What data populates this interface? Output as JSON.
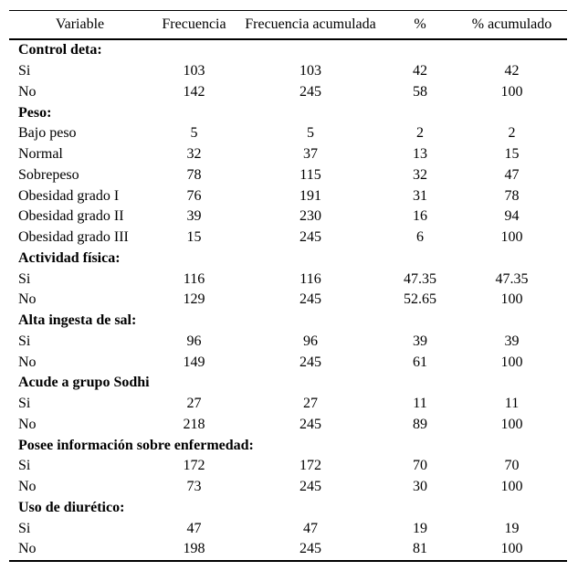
{
  "table": {
    "columns": [
      "Variable",
      "Frecuencia",
      "Frecuencia acumulada",
      "%",
      "% acumulado"
    ],
    "sections": [
      {
        "header": "Control deta:",
        "rows": [
          [
            "Si",
            "103",
            "103",
            "42",
            "42"
          ],
          [
            "No",
            "142",
            "245",
            "58",
            "100"
          ]
        ]
      },
      {
        "header": "Peso:",
        "rows": [
          [
            "Bajo peso",
            "5",
            "5",
            "2",
            "2"
          ],
          [
            "Normal",
            "32",
            "37",
            "13",
            "15"
          ],
          [
            "Sobrepeso",
            "78",
            "115",
            "32",
            "47"
          ],
          [
            "Obesidad grado I",
            "76",
            "191",
            "31",
            "78"
          ],
          [
            "Obesidad grado II",
            "39",
            "230",
            "16",
            "94"
          ],
          [
            "Obesidad grado III",
            "15",
            "245",
            "6",
            "100"
          ]
        ]
      },
      {
        "header": "Actividad física:",
        "rows": [
          [
            "Si",
            "116",
            "116",
            "47.35",
            "47.35"
          ],
          [
            "No",
            "129",
            "245",
            "52.65",
            "100"
          ]
        ]
      },
      {
        "header": "Alta ingesta de sal:",
        "rows": [
          [
            "Si",
            "96",
            "96",
            "39",
            "39"
          ],
          [
            "No",
            "149",
            "245",
            "61",
            "100"
          ]
        ]
      },
      {
        "header": "Acude a grupo Sodhi",
        "rows": [
          [
            "Si",
            "27",
            "27",
            "11",
            "11"
          ],
          [
            "No",
            "218",
            "245",
            "89",
            "100"
          ]
        ]
      },
      {
        "header": "Posee información sobre enfermedad:",
        "rows": [
          [
            "Si",
            "172",
            "172",
            "70",
            "70"
          ],
          [
            "No",
            "73",
            "245",
            "30",
            "100"
          ]
        ]
      },
      {
        "header": "Uso de diurético:",
        "rows": [
          [
            "Si",
            "47",
            "47",
            "19",
            "19"
          ],
          [
            "No",
            "198",
            "245",
            "81",
            "100"
          ]
        ]
      }
    ]
  }
}
